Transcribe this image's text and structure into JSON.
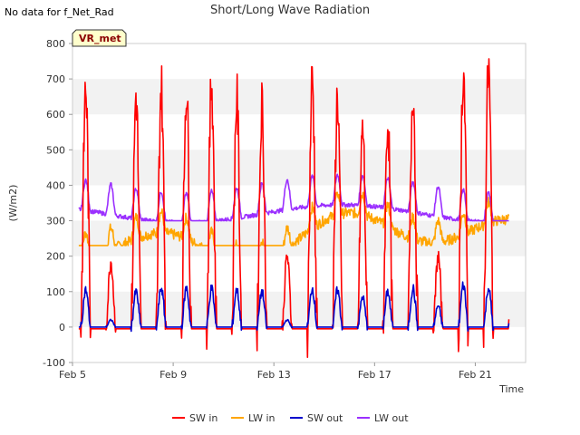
{
  "header": {
    "no_data_note": "No data for f_Net_Rad"
  },
  "chart_data": {
    "type": "line",
    "title": "Short/Long Wave Radiation",
    "xlabel": "Time",
    "ylabel": "(W/m2)",
    "ylim": [
      -100,
      800
    ],
    "yticks": [
      -100,
      0,
      100,
      200,
      300,
      400,
      500,
      600,
      700,
      800
    ],
    "x_tick_labels": [
      "Feb 5",
      "Feb 9",
      "Feb 13",
      "Feb 17",
      "Feb 21"
    ],
    "x_tick_days": [
      5,
      9,
      13,
      17,
      21
    ],
    "xlim_days": [
      5.0,
      23.0
    ],
    "grid": "horizontal bands",
    "legend_position": "bottom",
    "badge": "VR_met",
    "series": [
      {
        "name": "SW in",
        "color": "#ff0000",
        "daily_peaks": [
          675,
          185,
          655,
          675,
          675,
          695,
          645,
          630,
          200,
          700,
          650,
          560,
          580,
          675,
          200,
          730,
          728
        ]
      },
      {
        "name": "LW in",
        "color": "#ffa500",
        "typical_range": [
          230,
          380
        ]
      },
      {
        "name": "SW out",
        "color": "#0000cc",
        "daily_peaks": [
          105,
          20,
          100,
          110,
          110,
          110,
          105,
          100,
          20,
          110,
          105,
          85,
          100,
          110,
          60,
          120,
          110
        ]
      },
      {
        "name": "LW out",
        "color": "#9b30ff",
        "typical_range": [
          300,
          445
        ]
      }
    ]
  }
}
